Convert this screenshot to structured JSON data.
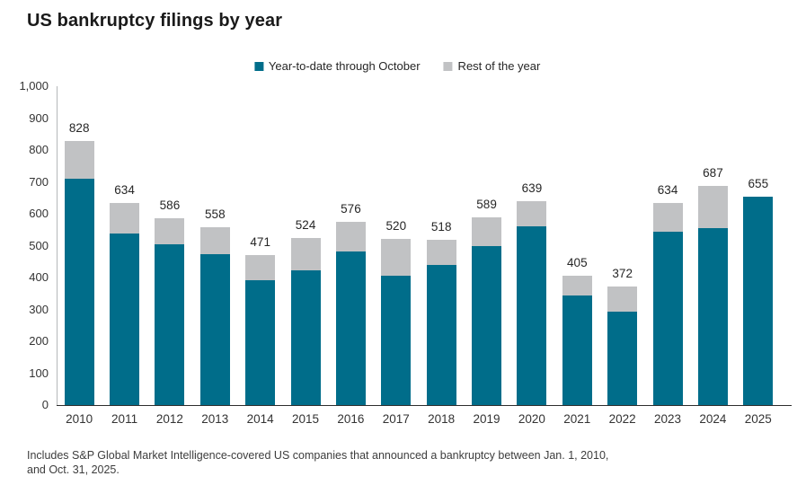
{
  "title": "US bankruptcy filings by year",
  "footnote": {
    "line1": "Includes S&P Global Market Intelligence-covered US companies that announced a bankruptcy between Jan. 1, 2010,",
    "line2": "and Oct. 31, 2025."
  },
  "colors": {
    "ytd_teal": "#006d8a",
    "rest_gray": "#c1c2c4"
  },
  "chart_data": {
    "type": "bar",
    "stacked": true,
    "title": "US bankruptcy filings by year",
    "categories": [
      "2010",
      "2011",
      "2012",
      "2013",
      "2014",
      "2015",
      "2016",
      "2017",
      "2018",
      "2019",
      "2020",
      "2021",
      "2022",
      "2023",
      "2024",
      "2025"
    ],
    "series": [
      {
        "name": "Year-to-date through October",
        "color": "#006d8a",
        "values": [
          710,
          538,
          505,
          472,
          391,
          423,
          482,
          405,
          440,
          499,
          560,
          345,
          294,
          545,
          555,
          655
        ]
      },
      {
        "name": "Rest of the year",
        "color": "#c1c2c4",
        "values": [
          118,
          96,
          81,
          86,
          80,
          101,
          94,
          115,
          78,
          90,
          79,
          60,
          78,
          89,
          132,
          0
        ]
      }
    ],
    "totals": [
      828,
      634,
      586,
      558,
      471,
      524,
      576,
      520,
      518,
      589,
      639,
      405,
      372,
      634,
      687,
      655
    ],
    "bar_total_labels": [
      "828",
      "634",
      "586",
      "558",
      "471",
      "524",
      "576",
      "520",
      "518",
      "589",
      "639",
      "405",
      "372",
      "634",
      "687",
      "655"
    ],
    "xlabel": "",
    "ylabel": "",
    "ylim": [
      0,
      1000
    ],
    "ytick_step": 100,
    "ytick_labels": [
      "1,000",
      "900",
      "800",
      "700",
      "600",
      "500",
      "400",
      "300",
      "200",
      "100",
      "0"
    ],
    "grid": false,
    "legend_position": "top"
  }
}
